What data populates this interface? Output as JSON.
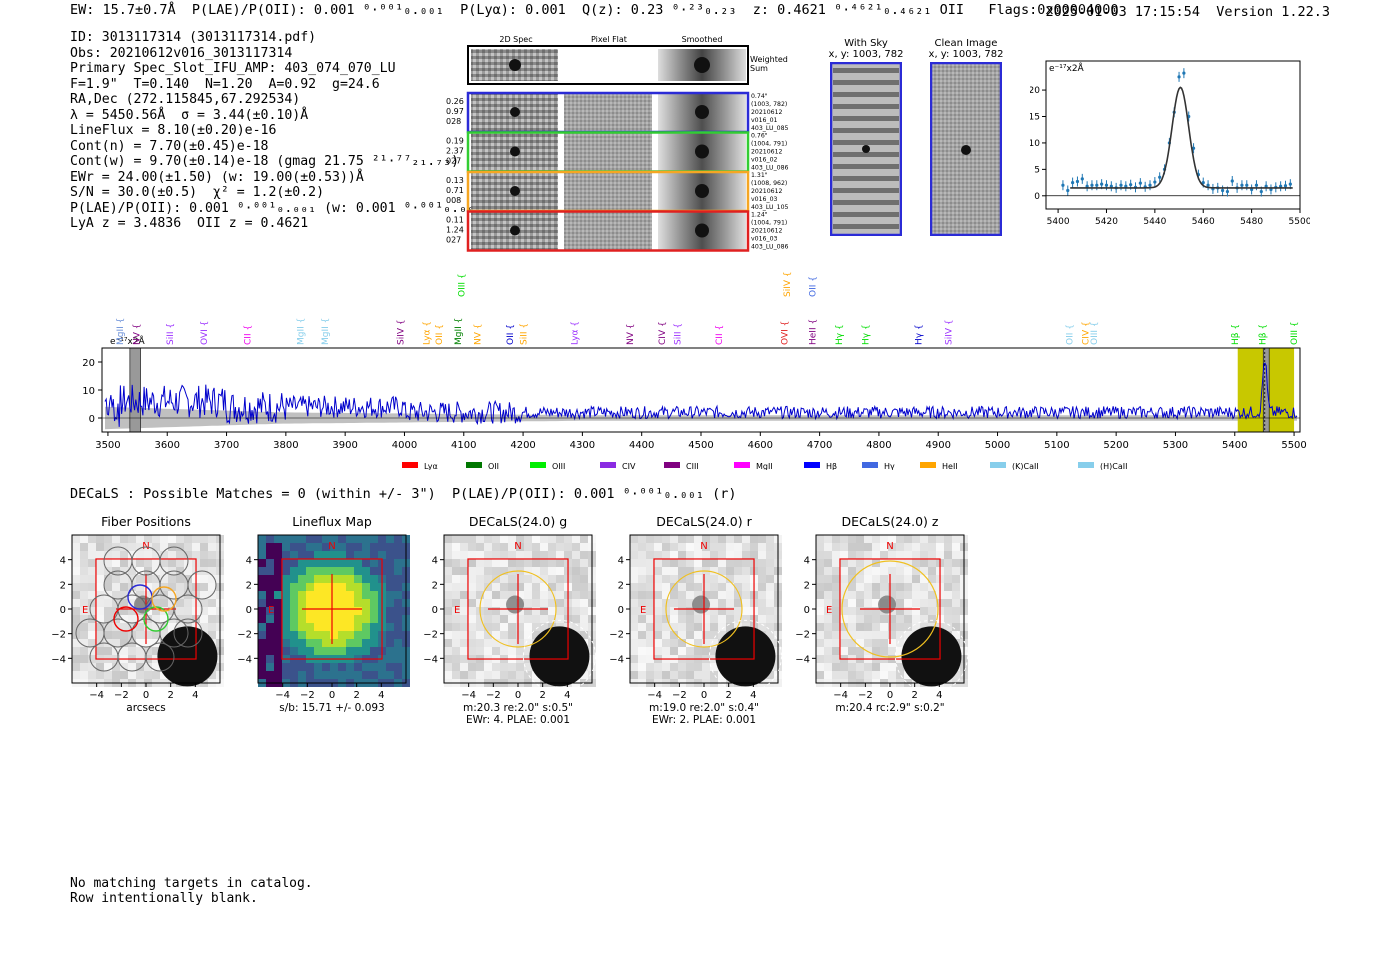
{
  "header": {
    "top_line": "EW: 15.7±0.7Å  P(LAE)/P(OII): 0.001 ⁰·⁰⁰¹₀.₀₀₁  P(Lyα): 0.001  Q(z): 0.23 ⁰·²³₀.₂₃  z: 0.4621 ⁰·⁴⁶²¹₀.₄₆₂₁ OII   Flags:0x00004000",
    "timestamp_version": "2025-01-03 17:15:54  Version 1.22.3"
  },
  "info_lines": [
    "ID: 3013117314 (3013117314.pdf)",
    "Obs: 20210612v016_3013117314",
    "Primary Spec_Slot_IFU_AMP: 403_074_070_LU",
    "F=1.9\"  T=0.140  N=1.20  A=0.92  g=24.6",
    "RA,Dec (272.115845,67.292534)",
    "λ = 5450.56Å  σ = 3.44(±0.10)Å",
    "LineFlux = 8.10(±0.20)e-16",
    "Cont(n) = 7.70(±0.45)e-18",
    "Cont(w) = 9.70(±0.14)e-18 (gmag 21.75 ²¹·⁷⁷₂₁.₇₃)",
    "EWr = 24.00(±1.50) (w: 19.00(±0.53))Å",
    "S/N = 30.0(±0.5)  χ² = 1.2(±0.2)",
    "P(LAE)/P(OII): 0.001 ⁰·⁰⁰¹₀.₀₀₁ (w: 0.001 ⁰·⁰⁰¹₀.₀₀₁)",
    "LyA z = 3.4836  OII z = 0.4621"
  ],
  "cutouts": {
    "col_titles": [
      "2D Spec",
      "Pixel Flat",
      "Smoothed"
    ],
    "weighted_label": "Weighted\nSum",
    "rows": [
      {
        "left": [
          "0.26",
          "0.97",
          "028"
        ],
        "color": "#2b2bd6",
        "right": [
          "0.74\"",
          "(1003, 782)",
          "20210612",
          "v016_01",
          "403_LU_085"
        ]
      },
      {
        "left": [
          "0.19",
          "2.37",
          "027"
        ],
        "color": "#32cd32",
        "right": [
          "0.76\"",
          "(1004, 791)",
          "20210612",
          "v016_02",
          "403_LU_086"
        ]
      },
      {
        "left": [
          "0.13",
          "0.71",
          "008"
        ],
        "color": "#f5a623",
        "right": [
          "1.31\"",
          "(1008, 962)",
          "20210612",
          "v016_03",
          "403_LU_105"
        ]
      },
      {
        "left": [
          "0.11",
          "1.24",
          "027"
        ],
        "color": "#e02020",
        "right": [
          "1.24\"",
          "(1004, 791)",
          "20210612",
          "v016_03",
          "403_LU_086"
        ]
      }
    ]
  },
  "sky_images": {
    "with_sky_title": "With Sky",
    "with_sky_coords": "x, y: 1003, 782",
    "clean_title": "Clean Image",
    "clean_coords": "x, y: 1003, 782"
  },
  "colors": {
    "spectrum": "#0000cc",
    "zoom_points": "#1f77b4",
    "highlight": "#c8c800",
    "error_band": "#b0b0b0",
    "box_blue": "#2b2bd6"
  },
  "zoom_chart": {
    "unit_label": "e⁻¹⁷x2Å",
    "xticks": [
      "5400",
      "5420",
      "5440",
      "5460",
      "5480",
      "5500"
    ],
    "yticks": [
      "0",
      "5",
      "10",
      "15",
      "20"
    ]
  },
  "main_spectrum": {
    "unit_label": "e⁻¹⁷x2Å",
    "xticks": [
      "3500",
      "3600",
      "3700",
      "3800",
      "3900",
      "4000",
      "4100",
      "4200",
      "4300",
      "4400",
      "4500",
      "4600",
      "4700",
      "4800",
      "4900",
      "5000",
      "5100",
      "5200",
      "5300",
      "5400",
      "5500"
    ],
    "yticks": [
      "0",
      "10",
      "20"
    ],
    "line_labels": [
      {
        "text": "MgII",
        "x": 3520,
        "color": "#6a8fd8",
        "row": 0
      },
      {
        "text": "NV",
        "x": 3548,
        "color": "#800080",
        "row": 0
      },
      {
        "text": "SiII",
        "x": 3605,
        "color": "#9b30ff",
        "row": 0
      },
      {
        "text": "OVI",
        "x": 3662,
        "color": "#9b30ff",
        "row": 0
      },
      {
        "text": "CII",
        "x": 3735,
        "color": "#ee00ee",
        "row": 0
      },
      {
        "text": "MgII",
        "x": 3825,
        "color": "#87ceeb",
        "row": 0
      },
      {
        "text": "MgII",
        "x": 3866,
        "color": "#87ceeb",
        "row": 0
      },
      {
        "text": "SiIV",
        "x": 3993,
        "color": "#800080",
        "row": 0
      },
      {
        "text": "Lyα",
        "x": 4037,
        "color": "#ffa500",
        "row": 0
      },
      {
        "text": "OII",
        "x": 4058,
        "color": "#ffa500",
        "row": 0
      },
      {
        "text": "MgII",
        "x": 4090,
        "color": "#008000",
        "row": 0
      },
      {
        "text": "OIII",
        "x": 4096,
        "color": "#00dd00",
        "row": 1
      },
      {
        "text": "NV",
        "x": 4123,
        "color": "#ffa500",
        "row": 0
      },
      {
        "text": "OII",
        "x": 4178,
        "color": "#0000cc",
        "row": 0
      },
      {
        "text": "SiII",
        "x": 4201,
        "color": "#ffa500",
        "row": 0
      },
      {
        "text": "Lyα",
        "x": 4287,
        "color": "#9b30ff",
        "row": 0
      },
      {
        "text": "NV",
        "x": 4380,
        "color": "#800080",
        "row": 0
      },
      {
        "text": "CIV",
        "x": 4434,
        "color": "#800080",
        "row": 0
      },
      {
        "text": "SiII",
        "x": 4460,
        "color": "#9b30ff",
        "row": 0
      },
      {
        "text": "CII",
        "x": 4530,
        "color": "#ee00ee",
        "row": 0
      },
      {
        "text": "OVI",
        "x": 4641,
        "color": "#e02020",
        "row": 0
      },
      {
        "text": "SiIV",
        "x": 4645,
        "color": "#ffa500",
        "row": 1
      },
      {
        "text": "HeII",
        "x": 4688,
        "color": "#800080",
        "row": 0
      },
      {
        "text": "OII",
        "x": 4688,
        "color": "#4169e1",
        "row": 1
      },
      {
        "text": "Hγ",
        "x": 4733,
        "color": "#00dd00",
        "row": 0
      },
      {
        "text": "Hγ",
        "x": 4777,
        "color": "#00dd00",
        "row": 0
      },
      {
        "text": "Hγ",
        "x": 4867,
        "color": "#0000cc",
        "row": 0
      },
      {
        "text": "SiIV",
        "x": 4917,
        "color": "#9b30ff",
        "row": 0
      },
      {
        "text": "OII",
        "x": 5121,
        "color": "#87ceeb",
        "row": 0
      },
      {
        "text": "CIV",
        "x": 5148,
        "color": "#ffa500",
        "row": 0
      },
      {
        "text": "OIII",
        "x": 5163,
        "color": "#87ceeb",
        "row": 0
      },
      {
        "text": "Hβ",
        "x": 5400,
        "color": "#00dd00",
        "row": 0
      },
      {
        "text": "Hβ",
        "x": 5447,
        "color": "#00dd00",
        "row": 0
      },
      {
        "text": "OIII",
        "x": 5500,
        "color": "#00dd00",
        "row": 0
      }
    ],
    "legend": [
      {
        "label": "Lyα",
        "color": "#ff0000"
      },
      {
        "label": "OII",
        "color": "#007700"
      },
      {
        "label": "OIII",
        "color": "#00ee00"
      },
      {
        "label": "CIV",
        "color": "#8a2be2"
      },
      {
        "label": "CIII",
        "color": "#800080"
      },
      {
        "label": "MgII",
        "color": "#ff00ff"
      },
      {
        "label": "Hβ",
        "color": "#0000ff"
      },
      {
        "label": "Hγ",
        "color": "#4169e1"
      },
      {
        "label": "HeII",
        "color": "#ffa500"
      },
      {
        "label": "(K)CaII",
        "color": "#87ceeb"
      },
      {
        "label": "(H)CaII",
        "color": "#87ceeb"
      }
    ]
  },
  "chart_data": [
    {
      "type": "line",
      "title": "",
      "xlabel": "",
      "ylabel": "e⁻¹⁷x2Å",
      "xlim": [
        5395,
        5500
      ],
      "ylim": [
        -2.5,
        25.5
      ],
      "series": [
        {
          "values_x": [
            5402,
            5404,
            5406,
            5408,
            5410,
            5412,
            5414,
            5416,
            5418,
            5420,
            5422,
            5424,
            5426,
            5428,
            5430,
            5432,
            5434,
            5436,
            5438,
            5440,
            5442,
            5444,
            5446,
            5448,
            5450,
            5452,
            5454,
            5456,
            5458,
            5460,
            5462,
            5464,
            5466,
            5468,
            5470,
            5472,
            5474,
            5476,
            5478,
            5480,
            5482,
            5484,
            5486,
            5488,
            5490,
            5492,
            5494,
            5496
          ],
          "values_y": [
            2.0,
            1.0,
            2.5,
            2.7,
            3.2,
            1.8,
            2.0,
            2.0,
            2.2,
            2.0,
            1.8,
            1.5,
            2.0,
            1.8,
            2.1,
            1.6,
            2.4,
            1.7,
            2.0,
            2.6,
            3.5,
            5.0,
            10.0,
            15.8,
            22.5,
            23.2,
            15.0,
            9.0,
            4.0,
            2.5,
            2.0,
            1.3,
            1.5,
            1.0,
            0.8,
            2.8,
            1.5,
            2.0,
            2.0,
            1.2,
            2.0,
            0.8,
            1.8,
            1.2,
            1.6,
            1.8,
            1.9,
            2.2
          ]
        },
        {
          "name": "",
          "fit_center": 5450.56,
          "fit_sigma": 3.44,
          "fit_amp": 19.0,
          "fit_base": 1.5
        }
      ]
    }
  ],
  "decals": {
    "line": "DECaLS : Possible Matches = 0 (within +/- 3\")  P(LAE)/P(OII): 0.001 ⁰·⁰⁰¹₀.₀₀₁ (r)",
    "panels": [
      {
        "title": "Fiber Positions",
        "caption1": "arcsecs",
        "caption2": ""
      },
      {
        "title": "Lineflux Map",
        "caption1": "s/b: 15.71 +/- 0.093",
        "caption2": ""
      },
      {
        "title": "DECaLS(24.0) g",
        "caption1": "m:20.3  re:2.0\"  s:0.5\"",
        "caption2": "EWr: 4, PLAE: 0.001"
      },
      {
        "title": "DECaLS(24.0) r",
        "caption1": "m:19.0  re:2.0\"  s:0.4\"",
        "caption2": "EWr: 2, PLAE: 0.001"
      },
      {
        "title": "DECaLS(24.0) z",
        "caption1": "m:20.4 rc:2.9\"  s:0.2\"",
        "caption2": ""
      }
    ],
    "ticks": [
      "−4",
      "−2",
      "0",
      "2",
      "4"
    ],
    "north": "N",
    "east": "E"
  },
  "footer": [
    "No matching targets in catalog.",
    "Row intentionally blank."
  ]
}
